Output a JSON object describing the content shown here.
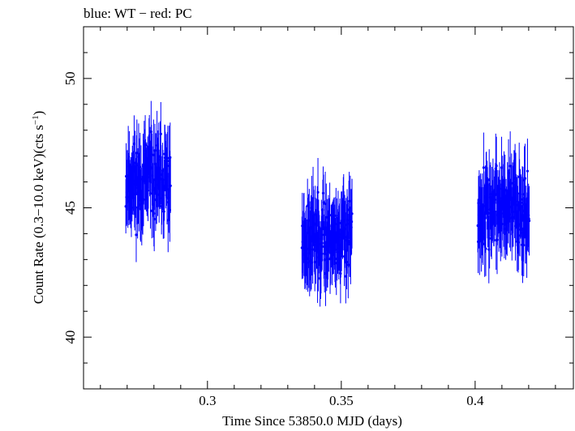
{
  "chart_data": {
    "type": "scatter",
    "title": "blue: WT − red: PC",
    "xlabel": "Time Since 53850.0 MJD (days)",
    "ylabel_main": "Count Rate (0.3−10.0 keV)(cts s",
    "ylabel_sup": "−1",
    "ylabel_close": ")",
    "xlim": [
      0.2537,
      0.4367
    ],
    "ylim": [
      38.0,
      52.0
    ],
    "x_ticks": [
      {
        "value": 0.3,
        "label": "0.3"
      },
      {
        "value": 0.35,
        "label": "0.35"
      },
      {
        "value": 0.4,
        "label": "0.4"
      }
    ],
    "x_minor_step": 0.01,
    "y_ticks": [
      {
        "value": 40,
        "label": "40"
      },
      {
        "value": 45,
        "label": "45"
      },
      {
        "value": 50,
        "label": "50"
      }
    ],
    "y_minor_step": 1,
    "grid": false,
    "series": [
      {
        "color": "#0000ff",
        "segments": [
          {
            "x_start": 0.2695,
            "x_end": 0.2862,
            "count": 130,
            "mean": 46.0,
            "amp": 1.4,
            "err": 1.2,
            "seed": 11
          },
          {
            "x_start": 0.3353,
            "x_end": 0.354,
            "count": 145,
            "mean": 43.9,
            "amp": 1.3,
            "err": 1.2,
            "seed": 23
          },
          {
            "x_start": 0.401,
            "x_end": 0.4202,
            "count": 150,
            "mean": 45.0,
            "amp": 1.4,
            "err": 1.2,
            "seed": 37
          }
        ]
      }
    ]
  }
}
